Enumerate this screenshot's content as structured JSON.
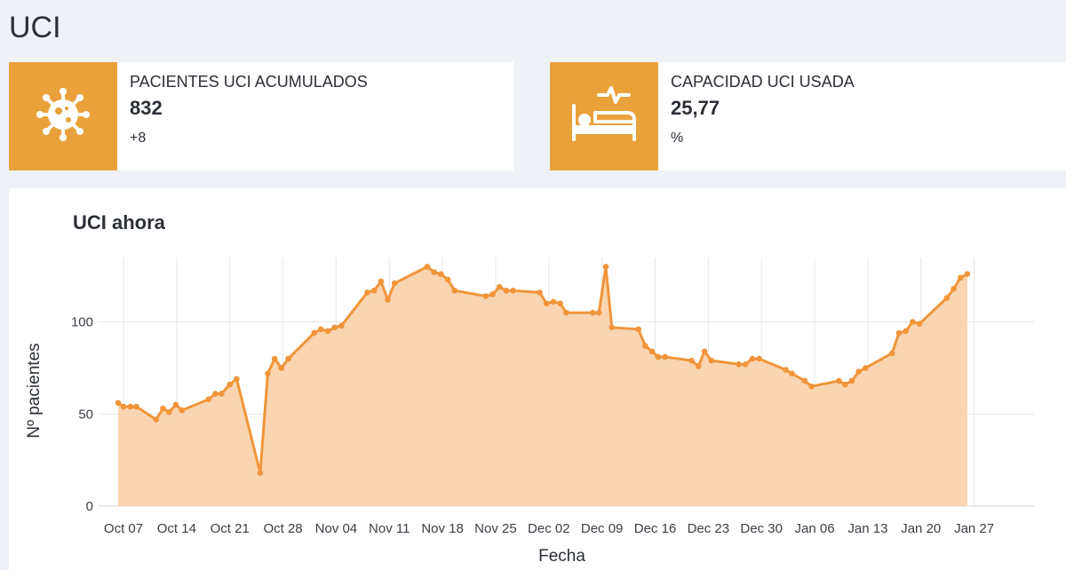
{
  "header": {
    "title": "UCI"
  },
  "info_boxes": [
    {
      "label": "PACIENTES UCI ACUMULADOS",
      "value": "832",
      "sub": "+8",
      "icon": "virus-icon",
      "color": "#e9a23b"
    },
    {
      "label": "CAPACIDAD UCI USADA",
      "value": "25,77",
      "sub": "%",
      "icon": "hospital-bed-icon",
      "color": "#e9a23b"
    }
  ],
  "chart": {
    "title": "UCI ahora"
  },
  "chart_data": {
    "type": "area",
    "title": "UCI ahora",
    "xlabel": "Fecha",
    "ylabel": "Nº pacientes",
    "ylim": [
      0,
      135
    ],
    "yticks": [
      0,
      50,
      100
    ],
    "xticks": [
      {
        "label": "Oct 07",
        "day": 7
      },
      {
        "label": "Oct 14",
        "day": 14
      },
      {
        "label": "Oct 21",
        "day": 21
      },
      {
        "label": "Oct 28",
        "day": 28
      },
      {
        "label": "Nov 04",
        "day": 35
      },
      {
        "label": "Nov 11",
        "day": 42
      },
      {
        "label": "Nov 18",
        "day": 49
      },
      {
        "label": "Nov 25",
        "day": 56
      },
      {
        "label": "Dec 02",
        "day": 63
      },
      {
        "label": "Dec 09",
        "day": 70
      },
      {
        "label": "Dec 16",
        "day": 77
      },
      {
        "label": "Dec 23",
        "day": 84
      },
      {
        "label": "Dec 30",
        "day": 91
      },
      {
        "label": "Jan 06",
        "day": 98
      },
      {
        "label": "Jan 13",
        "day": 105
      },
      {
        "label": "Jan 20",
        "day": 112
      },
      {
        "label": "Jan 27",
        "day": 119
      }
    ],
    "grid": true,
    "line_color": "#f0953a",
    "fill_color": "#f8d0a8",
    "points": [
      [
        6.3,
        56
      ],
      [
        7.0,
        54
      ],
      [
        7.9,
        54
      ],
      [
        8.7,
        54
      ],
      [
        11.3,
        47
      ],
      [
        12.2,
        53
      ],
      [
        13.0,
        51
      ],
      [
        13.9,
        55
      ],
      [
        14.7,
        52
      ],
      [
        18.2,
        58
      ],
      [
        19.1,
        61
      ],
      [
        19.9,
        61
      ],
      [
        21.0,
        66
      ],
      [
        21.9,
        69
      ],
      [
        25.0,
        18
      ],
      [
        26.0,
        72
      ],
      [
        26.9,
        80
      ],
      [
        27.8,
        75
      ],
      [
        28.7,
        80
      ],
      [
        32.1,
        94
      ],
      [
        33.0,
        96
      ],
      [
        33.9,
        95
      ],
      [
        34.8,
        97
      ],
      [
        35.7,
        98
      ],
      [
        39.1,
        116
      ],
      [
        40.0,
        117
      ],
      [
        40.9,
        122
      ],
      [
        41.8,
        112
      ],
      [
        42.7,
        121
      ],
      [
        47.0,
        130
      ],
      [
        47.9,
        127
      ],
      [
        48.8,
        126
      ],
      [
        49.7,
        123
      ],
      [
        50.6,
        117
      ],
      [
        54.7,
        114
      ],
      [
        55.6,
        115
      ],
      [
        56.5,
        119
      ],
      [
        57.4,
        117
      ],
      [
        58.3,
        117
      ],
      [
        61.8,
        116
      ],
      [
        62.7,
        110
      ],
      [
        63.6,
        111
      ],
      [
        64.5,
        110
      ],
      [
        65.3,
        105
      ],
      [
        68.8,
        105
      ],
      [
        69.6,
        105
      ],
      [
        70.5,
        130
      ],
      [
        71.3,
        97
      ],
      [
        74.8,
        96
      ],
      [
        75.7,
        87
      ],
      [
        76.6,
        84
      ],
      [
        77.4,
        81
      ],
      [
        78.3,
        81
      ],
      [
        81.8,
        79
      ],
      [
        82.7,
        76
      ],
      [
        83.5,
        84
      ],
      [
        84.4,
        79
      ],
      [
        88.0,
        77
      ],
      [
        88.9,
        77
      ],
      [
        89.8,
        80
      ],
      [
        90.7,
        80
      ],
      [
        94.2,
        74
      ],
      [
        95.0,
        72
      ],
      [
        96.7,
        68
      ],
      [
        97.6,
        65
      ],
      [
        101.2,
        68
      ],
      [
        102.0,
        66
      ],
      [
        102.9,
        68
      ],
      [
        103.8,
        73
      ],
      [
        104.7,
        75
      ],
      [
        108.2,
        83
      ],
      [
        109.1,
        94
      ],
      [
        110.0,
        95
      ],
      [
        110.9,
        100
      ],
      [
        111.8,
        99
      ],
      [
        115.4,
        113
      ],
      [
        116.3,
        118
      ],
      [
        117.2,
        124
      ],
      [
        118.1,
        126
      ]
    ]
  }
}
